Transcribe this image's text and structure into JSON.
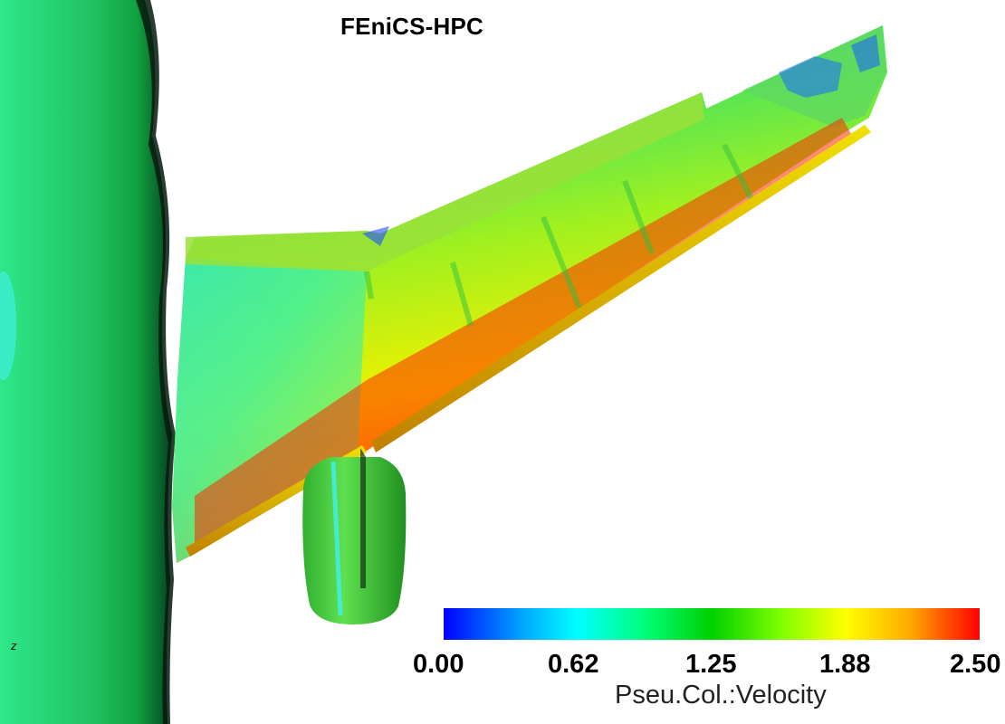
{
  "title": "FEniCS-HPC",
  "axis_label": "z",
  "colorbar": {
    "title": "Pseu.Col.:Velocity",
    "ticks": [
      "0.00",
      "0.62",
      "1.25",
      "1.88",
      "2.50"
    ],
    "range": [
      0.0,
      2.5
    ],
    "colors": [
      "#0000ff",
      "#00ffff",
      "#00d000",
      "#ffff00",
      "#ff0000"
    ]
  }
}
